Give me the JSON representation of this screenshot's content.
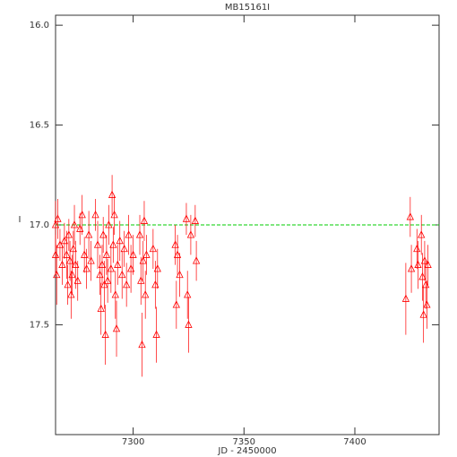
{
  "chart_data": {
    "type": "scatter",
    "title": "MB15161I",
    "x_label": "JD - 2450000",
    "y_label": "I",
    "x": [
      7265,
      7265,
      7265.5,
      7266,
      7267,
      7268,
      7269,
      7270,
      7270.5,
      7271,
      7271.5,
      7272,
      7272.5,
      7273,
      7273.5,
      7274,
      7275,
      7276,
      7277,
      7278,
      7279,
      7280,
      7281,
      7283,
      7284,
      7285,
      7285.5,
      7286,
      7286.5,
      7287,
      7287.5,
      7288,
      7288.5,
      7289,
      7290,
      7290.5,
      7291,
      7291.5,
      7292,
      7292.5,
      7293,
      7294,
      7295,
      7296,
      7297,
      7298,
      7299,
      7300,
      7303,
      7303.5,
      7304,
      7304.5,
      7305,
      7305.5,
      7306,
      7309,
      7310,
      7310.5,
      7311,
      7319,
      7319.5,
      7320,
      7321,
      7324,
      7324.5,
      7325,
      7326,
      7328,
      7328.5,
      7423,
      7425,
      7425.5,
      7428,
      7428.5,
      7430,
      7430.5,
      7431,
      7431.5,
      7432,
      7432.5,
      7433
    ],
    "values": [
      17.0,
      17.15,
      17.25,
      16.97,
      17.1,
      17.2,
      17.08,
      17.15,
      17.3,
      17.05,
      17.18,
      17.35,
      17.25,
      17.12,
      17.0,
      17.2,
      17.28,
      17.02,
      16.95,
      17.15,
      17.22,
      17.05,
      17.18,
      16.95,
      17.1,
      17.25,
      17.42,
      17.2,
      17.05,
      17.3,
      17.55,
      17.15,
      17.28,
      17.0,
      17.22,
      16.85,
      17.1,
      16.95,
      17.35,
      17.52,
      17.2,
      17.08,
      17.25,
      17.12,
      17.3,
      17.05,
      17.22,
      17.15,
      17.05,
      17.28,
      17.6,
      17.18,
      16.98,
      17.35,
      17.15,
      17.12,
      17.3,
      17.55,
      17.22,
      17.1,
      17.4,
      17.15,
      17.25,
      16.97,
      17.35,
      17.5,
      17.05,
      16.98,
      17.18,
      17.37,
      16.96,
      17.22,
      17.12,
      17.2,
      17.05,
      17.26,
      17.45,
      17.18,
      17.3,
      17.4,
      17.2
    ],
    "errors": [
      0.12,
      0.1,
      0.15,
      0.1,
      0.08,
      0.1,
      0.09,
      0.12,
      0.1,
      0.08,
      0.1,
      0.12,
      0.1,
      0.09,
      0.1,
      0.12,
      0.1,
      0.08,
      0.1,
      0.09,
      0.1,
      0.12,
      0.1,
      0.08,
      0.12,
      0.1,
      0.13,
      0.1,
      0.09,
      0.12,
      0.15,
      0.1,
      0.11,
      0.1,
      0.12,
      0.1,
      0.09,
      0.1,
      0.12,
      0.14,
      0.1,
      0.1,
      0.12,
      0.09,
      0.11,
      0.1,
      0.12,
      0.1,
      0.1,
      0.12,
      0.16,
      0.1,
      0.1,
      0.12,
      0.1,
      0.1,
      0.12,
      0.14,
      0.1,
      0.1,
      0.12,
      0.1,
      0.11,
      0.08,
      0.12,
      0.14,
      0.1,
      0.08,
      0.1,
      0.18,
      0.1,
      0.12,
      0.1,
      0.12,
      0.1,
      0.12,
      0.14,
      0.1,
      0.12,
      0.12,
      0.1
    ],
    "color": "#ff0000",
    "xlim": [
      7265,
      7438
    ],
    "xticks": [
      7300,
      7350,
      7400
    ],
    "ylim": [
      15.95,
      18.05
    ],
    "y_inverted": true,
    "yticks": [
      {
        "value": 16.0,
        "label": "16.0"
      },
      {
        "value": 16.5,
        "label": "16.5"
      },
      {
        "value": 17.0,
        "label": "17.0"
      },
      {
        "value": 17.5,
        "label": "17.5"
      }
    ],
    "reference_line": {
      "value": 17.0,
      "color": "#00cc00"
    }
  }
}
